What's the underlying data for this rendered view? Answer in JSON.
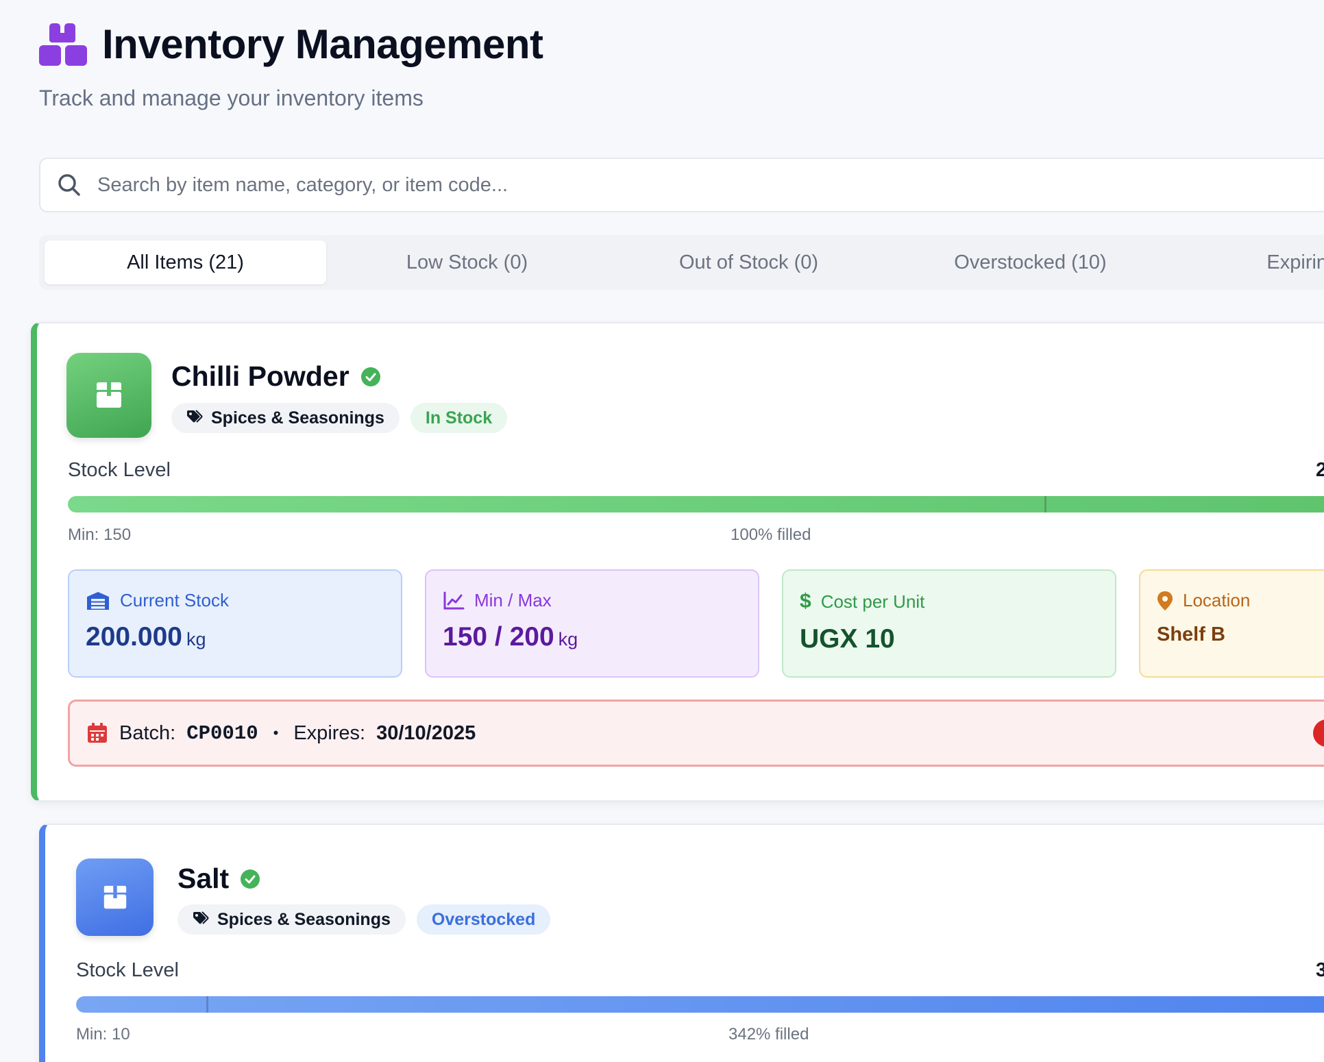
{
  "header": {
    "title": "Inventory Management",
    "subtitle": "Track and manage your inventory items",
    "logo_icon": "boxes-icon"
  },
  "search": {
    "placeholder": "Search by item name, category, or item code...",
    "value": ""
  },
  "tabs": [
    {
      "label": "All Items (21)",
      "active": true
    },
    {
      "label": "Low Stock (0)",
      "active": false
    },
    {
      "label": "Out of Stock (0)",
      "active": false
    },
    {
      "label": "Overstocked (10)",
      "active": false
    },
    {
      "label": "Expiring S",
      "active": false
    }
  ],
  "items": [
    {
      "name": "Chilli Powder",
      "category": "Spices & Seasonings",
      "status": "In Stock",
      "stock_label": "Stock Level",
      "stock_value_partial": "2",
      "fill_fraction": 1.0,
      "min_marker_fraction": 0.75,
      "min_caption": "Min: 150",
      "filled_caption": "100% filled",
      "current_stock_label": "Current Stock",
      "current_stock_value": "200.000",
      "unit": "kg",
      "minmax_label": "Min / Max",
      "minmax_value": "150 / 200",
      "cost_label": "Cost per Unit",
      "cost_value": "UGX 10",
      "location_label": "Location",
      "location_value": "Shelf B",
      "batch_label": "Batch:",
      "batch_code": "CP0010",
      "expires_label": "Expires:",
      "expires_value": "30/10/2025",
      "accent": "#4cb963"
    },
    {
      "name": "Salt",
      "category": "Spices & Seasonings",
      "status": "Overstocked",
      "stock_label": "Stock Level",
      "stock_value_partial": "3",
      "fill_fraction": 1.0,
      "min_marker_fraction": 0.1,
      "min_caption": "Min: 10",
      "filled_caption": "342% filled",
      "accent": "#4f83ee"
    }
  ]
}
